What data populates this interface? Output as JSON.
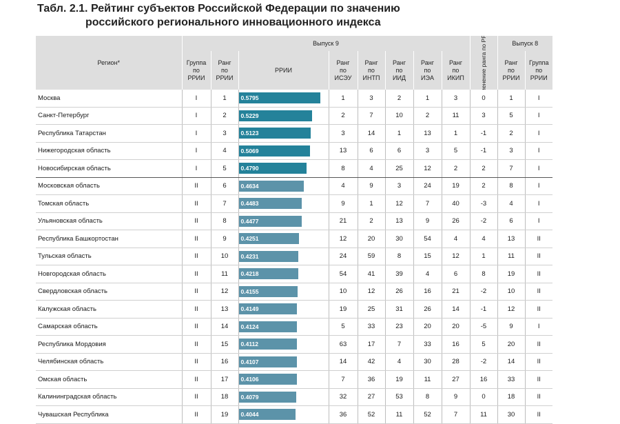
{
  "title": {
    "line1": "Табл. 2.1. Рейтинг субъектов Российской Федерации по значению",
    "line2": "российского регионального инновационного индекса"
  },
  "headers": {
    "region": "Регион*",
    "edition9": "Выпуск 9",
    "edition8": "Выпуск 8",
    "group9": "Группа\nпо\nРРИИ",
    "rank9": "Ранг\nпо\nРРИИ",
    "rrii": "РРИИ",
    "rank_isey": "Ранг\nпо\nИСЭУ",
    "rank_intp": "Ранг\nпо\nИНТП",
    "rank_iid": "Ранг\nпо\nИИД",
    "rank_iea": "Ранг\nпо\nИЭА",
    "rank_ikip": "Ранг\nпо\nИКИП",
    "change": "Изменение\nранга по РРИИ",
    "rank8": "Ранг\nпо\nРРИИ",
    "group8": "Группа\nпо\nРРИИ"
  },
  "bar_colors": {
    "group_I": "#24829a",
    "group_II": "#5c93a9"
  },
  "rows": [
    {
      "region": "Москва",
      "group": "I",
      "rank": "1",
      "rrii": "0.5795",
      "isey": "1",
      "intp": "3",
      "iid": "2",
      "iea": "1",
      "ikip": "3",
      "change": "0",
      "rank8": "1",
      "group8": "I"
    },
    {
      "region": "Санкт-Петербург",
      "group": "I",
      "rank": "2",
      "rrii": "0.5229",
      "isey": "2",
      "intp": "7",
      "iid": "10",
      "iea": "2",
      "ikip": "11",
      "change": "3",
      "rank8": "5",
      "group8": "I"
    },
    {
      "region": "Республика Татарстан",
      "group": "I",
      "rank": "3",
      "rrii": "0.5123",
      "isey": "3",
      "intp": "14",
      "iid": "1",
      "iea": "13",
      "ikip": "1",
      "change": "-1",
      "rank8": "2",
      "group8": "I"
    },
    {
      "region": "Нижегородская область",
      "group": "I",
      "rank": "4",
      "rrii": "0.5069",
      "isey": "13",
      "intp": "6",
      "iid": "6",
      "iea": "3",
      "ikip": "5",
      "change": "-1",
      "rank8": "3",
      "group8": "I"
    },
    {
      "region": "Новосибирская область",
      "group": "I",
      "rank": "5",
      "rrii": "0.4790",
      "isey": "8",
      "intp": "4",
      "iid": "25",
      "iea": "12",
      "ikip": "2",
      "change": "2",
      "rank8": "7",
      "group8": "I"
    },
    {
      "region": "Московская область",
      "group": "II",
      "rank": "6",
      "rrii": "0.4634",
      "isey": "4",
      "intp": "9",
      "iid": "3",
      "iea": "24",
      "ikip": "19",
      "change": "2",
      "rank8": "8",
      "group8": "I"
    },
    {
      "region": "Томская область",
      "group": "II",
      "rank": "7",
      "rrii": "0.4483",
      "isey": "9",
      "intp": "1",
      "iid": "12",
      "iea": "7",
      "ikip": "40",
      "change": "-3",
      "rank8": "4",
      "group8": "I"
    },
    {
      "region": "Ульяновская область",
      "group": "II",
      "rank": "8",
      "rrii": "0.4477",
      "isey": "21",
      "intp": "2",
      "iid": "13",
      "iea": "9",
      "ikip": "26",
      "change": "-2",
      "rank8": "6",
      "group8": "I"
    },
    {
      "region": "Республика Башкортостан",
      "group": "II",
      "rank": "9",
      "rrii": "0.4251",
      "isey": "12",
      "intp": "20",
      "iid": "30",
      "iea": "54",
      "ikip": "4",
      "change": "4",
      "rank8": "13",
      "group8": "II"
    },
    {
      "region": "Тульская область",
      "group": "II",
      "rank": "10",
      "rrii": "0.4231",
      "isey": "24",
      "intp": "59",
      "iid": "8",
      "iea": "15",
      "ikip": "12",
      "change": "1",
      "rank8": "11",
      "group8": "II"
    },
    {
      "region": "Новгородская область",
      "group": "II",
      "rank": "11",
      "rrii": "0.4218",
      "isey": "54",
      "intp": "41",
      "iid": "39",
      "iea": "4",
      "ikip": "6",
      "change": "8",
      "rank8": "19",
      "group8": "II"
    },
    {
      "region": "Свердловская область",
      "group": "II",
      "rank": "12",
      "rrii": "0.4155",
      "isey": "10",
      "intp": "12",
      "iid": "26",
      "iea": "16",
      "ikip": "21",
      "change": "-2",
      "rank8": "10",
      "group8": "II"
    },
    {
      "region": "Калужская область",
      "group": "II",
      "rank": "13",
      "rrii": "0.4149",
      "isey": "19",
      "intp": "25",
      "iid": "31",
      "iea": "26",
      "ikip": "14",
      "change": "-1",
      "rank8": "12",
      "group8": "II"
    },
    {
      "region": "Самарская область",
      "group": "II",
      "rank": "14",
      "rrii": "0.4124",
      "isey": "5",
      "intp": "33",
      "iid": "23",
      "iea": "20",
      "ikip": "20",
      "change": "-5",
      "rank8": "9",
      "group8": "I"
    },
    {
      "region": "Республика Мордовия",
      "group": "II",
      "rank": "15",
      "rrii": "0.4112",
      "isey": "63",
      "intp": "17",
      "iid": "7",
      "iea": "33",
      "ikip": "16",
      "change": "5",
      "rank8": "20",
      "group8": "II"
    },
    {
      "region": "Челябинская область",
      "group": "II",
      "rank": "16",
      "rrii": "0.4107",
      "isey": "14",
      "intp": "42",
      "iid": "4",
      "iea": "30",
      "ikip": "28",
      "change": "-2",
      "rank8": "14",
      "group8": "II"
    },
    {
      "region": "Омская область",
      "group": "II",
      "rank": "17",
      "rrii": "0.4106",
      "isey": "7",
      "intp": "36",
      "iid": "19",
      "iea": "11",
      "ikip": "27",
      "change": "16",
      "rank8": "33",
      "group8": "II"
    },
    {
      "region": "Калининградская область",
      "group": "II",
      "rank": "18",
      "rrii": "0.4079",
      "isey": "32",
      "intp": "27",
      "iid": "53",
      "iea": "8",
      "ikip": "9",
      "change": "0",
      "rank8": "18",
      "group8": "II"
    },
    {
      "region": "Чувашская Республика",
      "group": "II",
      "rank": "19",
      "rrii": "0.4044",
      "isey": "36",
      "intp": "52",
      "iid": "11",
      "iea": "52",
      "ikip": "7",
      "change": "11",
      "rank8": "30",
      "group8": "II"
    }
  ]
}
